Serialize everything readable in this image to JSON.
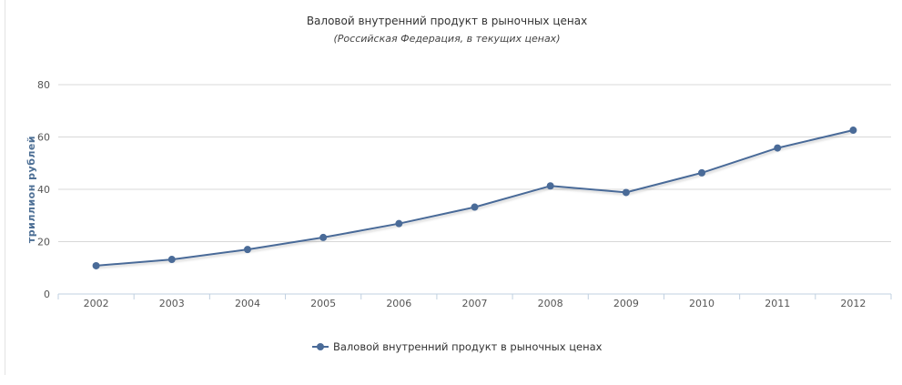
{
  "chart_data": {
    "type": "line",
    "title": "Валовой внутренний продукт в рыночных ценах",
    "subtitle": "(Российская Федерация, в текущих ценах)",
    "xlabel": "",
    "ylabel": "триллион рублей",
    "categories": [
      "2002",
      "2003",
      "2004",
      "2005",
      "2006",
      "2007",
      "2008",
      "2009",
      "2010",
      "2011",
      "2012"
    ],
    "series": [
      {
        "name": "Валовой внутренний продукт в рыночных ценах",
        "values": [
          10.8,
          13.2,
          17.0,
          21.6,
          26.9,
          33.2,
          41.3,
          38.8,
          46.3,
          55.8,
          62.6
        ]
      }
    ],
    "ylim": [
      0,
      80
    ],
    "yticks": [
      "0",
      "20",
      "40",
      "60",
      "80"
    ],
    "grid": true,
    "legend": "bottom-center",
    "colors": {
      "series": "#4a6b98",
      "grid": "#d8d8d8",
      "axis": "#c0d0e0"
    }
  }
}
